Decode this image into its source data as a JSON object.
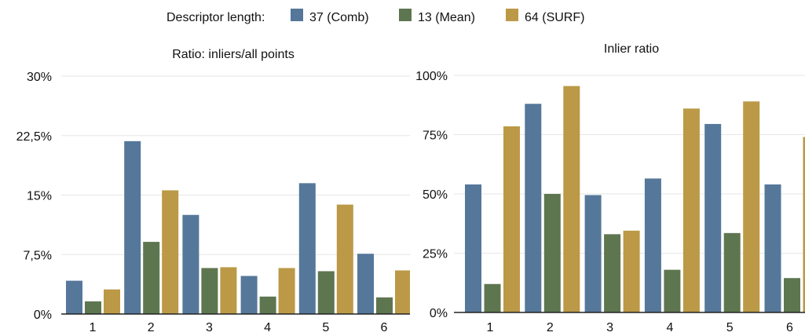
{
  "legend": {
    "title": "Descriptor length:",
    "colors": [
      "#55779a",
      "#5e7650",
      "#bb9946"
    ]
  },
  "chart_data": [
    {
      "type": "bar",
      "title": "Ratio: inliers/all points",
      "categories": [
        "1",
        "2",
        "3",
        "4",
        "5",
        "6"
      ],
      "series": [
        {
          "name": "37 (Comb)",
          "values": [
            4.2,
            21.8,
            12.5,
            4.8,
            16.5,
            7.6
          ]
        },
        {
          "name": "13 (Mean)",
          "values": [
            1.6,
            9.1,
            5.8,
            2.2,
            5.4,
            2.1
          ]
        },
        {
          "name": "64 (SURF)",
          "values": [
            3.1,
            15.6,
            5.9,
            5.8,
            13.8,
            5.5
          ]
        }
      ],
      "ylim": [
        0,
        30
      ],
      "yticks": [
        0,
        7.5,
        15,
        22.5,
        30
      ],
      "ytick_labels": [
        "0%",
        "7,5%",
        "15%",
        "22,5%",
        "30%"
      ],
      "grid": true,
      "legend_position": "top"
    },
    {
      "type": "bar",
      "title": "Inlier ratio",
      "categories": [
        "1",
        "2",
        "3",
        "4",
        "5",
        "6"
      ],
      "series": [
        {
          "name": "37 (Comb)",
          "values": [
            54,
            88,
            49.5,
            56.5,
            79.5,
            54
          ]
        },
        {
          "name": "13 (Mean)",
          "values": [
            12,
            50,
            33,
            18,
            33.5,
            14.5
          ]
        },
        {
          "name": "64 (SURF)",
          "values": [
            78.5,
            95.5,
            34.5,
            86,
            89,
            74
          ]
        }
      ],
      "ylim": [
        0,
        100
      ],
      "yticks": [
        0,
        25,
        50,
        75,
        100
      ],
      "ytick_labels": [
        "0%",
        "25%",
        "50%",
        "75%",
        "100%"
      ],
      "grid": true,
      "legend_position": "top"
    }
  ]
}
